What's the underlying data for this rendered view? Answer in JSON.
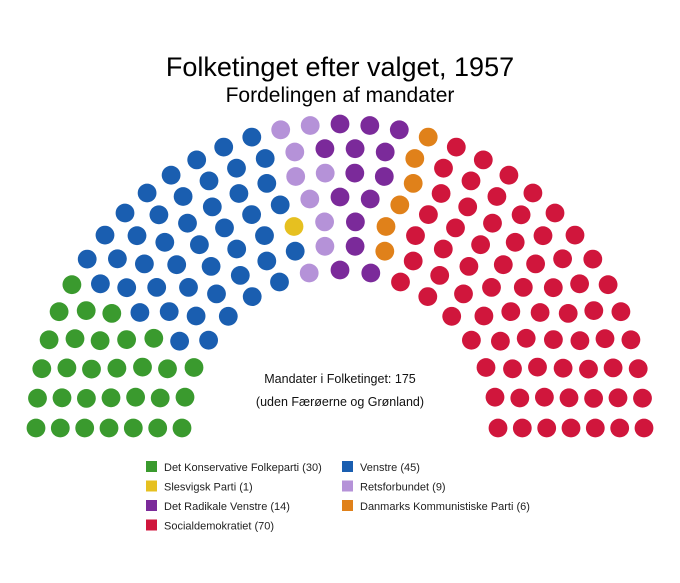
{
  "chart_data": {
    "type": "parliament",
    "title": "Folketinget efter valget, 1957",
    "subtitle": "Fordelingen af mandater",
    "annotation_line1": "Mandater i Folketinget: 175",
    "annotation_line2": "(uden Færøerne og Grønland)",
    "total_seats": 175,
    "series": [
      {
        "name": "Det Konservative Folkeparti (30)",
        "party": "Det Konservative Folkeparti",
        "seats": 30,
        "color": "#3a9a2e"
      },
      {
        "name": "Venstre (45)",
        "party": "Venstre",
        "seats": 45,
        "color": "#1a5eb0"
      },
      {
        "name": "Slesvigsk Parti (1)",
        "party": "Slesvigsk Parti",
        "seats": 1,
        "color": "#e6c020"
      },
      {
        "name": "Retsforbundet (9)",
        "party": "Retsforbundet",
        "seats": 9,
        "color": "#b592d8"
      },
      {
        "name": "Det Radikale Venstre (14)",
        "party": "Det Radikale Venstre",
        "seats": 14,
        "color": "#7b2a9a"
      },
      {
        "name": "Danmarks Kommunistiske Parti (6)",
        "party": "Danmarks Kommunistiske Parti",
        "seats": 6,
        "color": "#e0811a"
      },
      {
        "name": "Socialdemokratiet (70)",
        "party": "Socialdemokratiet",
        "seats": 70,
        "color": "#d0163c"
      }
    ],
    "legend_order": [
      "Det Konservative Folkeparti (30)",
      "Venstre (45)",
      "Slesvigsk Parti (1)",
      "Retsforbundet (9)",
      "Det Radikale Venstre (14)",
      "Danmarks Kommunistiske Parti (6)",
      "Socialdemokratiet (70)"
    ],
    "legend_placement": "bottom"
  }
}
